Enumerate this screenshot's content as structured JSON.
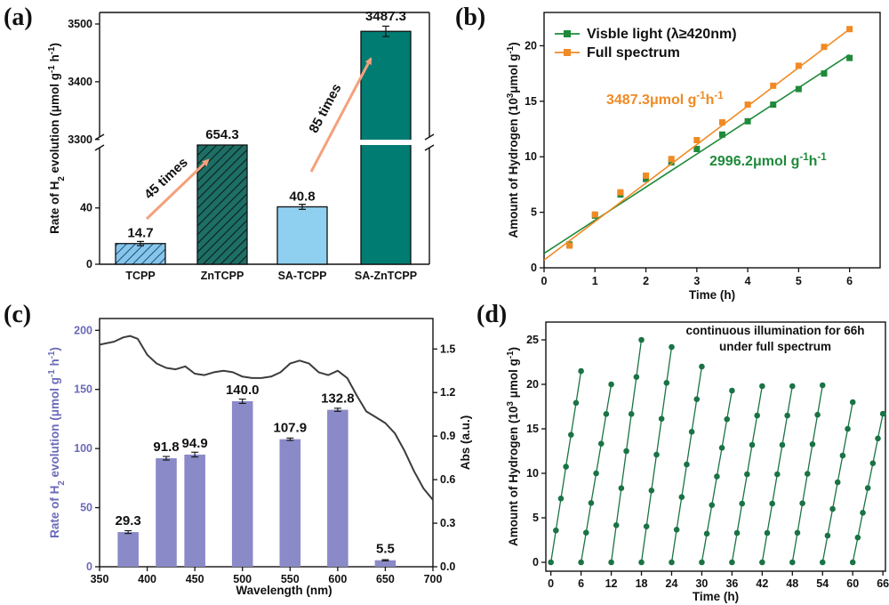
{
  "figure": {
    "panel_letters": [
      "(a)",
      "(b)",
      "(c)",
      "(d)"
    ],
    "colors": {
      "tcpp": "#86c6ea",
      "zntcpp": "#1d6f66",
      "sa_tcpp": "#8fd0f0",
      "sa_zntcpp": "#007c72",
      "arrow": "#f4a17c",
      "green": "#1e8a3a",
      "orange": "#f08a24",
      "purple": "#8a8ac8",
      "purple_text": "#6b6bb8",
      "abs_line": "#3c3c3c",
      "cycle": "#1a7345"
    }
  },
  "chart_data": [
    {
      "panel": "(a)",
      "type": "bar",
      "categories": [
        "TCPP",
        "ZnTCPP",
        "SA-TCPP",
        "SA-ZnTCPP"
      ],
      "values": [
        14.7,
        654.3,
        40.8,
        3487.3
      ],
      "value_labels": [
        "14.7",
        "654.3",
        "40.8",
        "3487.3"
      ],
      "errors": [
        1.5,
        0,
        1.8,
        9
      ],
      "ylabel": "Rate of H2 evolution (μmol g-1 h-1)",
      "ylabel_parts": {
        "main": "Rate of H",
        "sub": "2",
        "rest": " evolution (μmol g",
        "sup1": "-1",
        "mid": " h",
        "sup2": "-1",
        "end": ")"
      },
      "axis_break": true,
      "lower_range": [
        0,
        55
      ],
      "lower_ticks": [
        "0",
        "40"
      ],
      "upper_range": [
        3295,
        3520
      ],
      "upper_ticks": [
        "3300",
        "3400",
        "3500"
      ],
      "annotations": [
        "45 times",
        "85 times"
      ]
    },
    {
      "panel": "(b)",
      "type": "scatter",
      "xlabel": "Time (h)",
      "ylabel": "Amount of Hydrogen (10³μmol g⁻¹)",
      "xlim": [
        0,
        6.6
      ],
      "ylim": [
        0,
        23
      ],
      "xticks": [
        "0",
        "1",
        "2",
        "3",
        "4",
        "5",
        "6"
      ],
      "yticks": [
        "0",
        "5",
        "10",
        "15",
        "20"
      ],
      "series": [
        {
          "name": "Visble light (λ≥420nm)",
          "color": "#1e8a3a",
          "x": [
            0.5,
            1,
            1.5,
            2,
            2.5,
            3,
            3.5,
            4,
            4.5,
            5,
            5.5,
            6
          ],
          "y": [
            2.1,
            4.7,
            6.6,
            8.0,
            9.5,
            10.7,
            12.0,
            13.2,
            14.7,
            16.1,
            17.5,
            18.9
          ],
          "fit": [
            [
              0,
              1.3
            ],
            [
              6,
              19.2
            ]
          ],
          "rate_label": "2996.2μmol g⁻¹h⁻¹"
        },
        {
          "name": "Full spectrum",
          "color": "#f08a24",
          "x": [
            0.5,
            1,
            1.5,
            2,
            2.5,
            3,
            3.5,
            4,
            4.5,
            5,
            5.5,
            6
          ],
          "y": [
            2.0,
            4.8,
            6.8,
            8.3,
            9.8,
            11.5,
            13.1,
            14.7,
            16.4,
            18.2,
            19.9,
            21.5
          ],
          "fit": [
            [
              0,
              0.7
            ],
            [
              6,
              21.5
            ]
          ],
          "rate_label": "3487.3μmol g⁻¹h⁻¹"
        }
      ]
    },
    {
      "panel": "(c)",
      "type": "bar",
      "xlabel": "Wavelength (nm)",
      "ylabel_left": "Rate of H2 evolution (μmol g⁻¹ h⁻¹)",
      "ylabel_right": "Abs (a.u.)",
      "xlim": [
        350,
        700
      ],
      "ylim_left": [
        0,
        210
      ],
      "ylim_right": [
        0,
        1.71
      ],
      "xticks": [
        "350",
        "400",
        "450",
        "500",
        "550",
        "600",
        "650",
        "700"
      ],
      "yticks_left": [
        "0",
        "50",
        "100",
        "150",
        "200"
      ],
      "yticks_right": [
        "0.0",
        "0.3",
        "0.6",
        "0.9",
        "1.2",
        "1.5"
      ],
      "bars": [
        {
          "x": 380,
          "value": 29.3,
          "label": "29.3",
          "err": 1.2
        },
        {
          "x": 420,
          "value": 91.8,
          "label": "91.8",
          "err": 1.5
        },
        {
          "x": 450,
          "value": 94.9,
          "label": "94.9",
          "err": 2.0
        },
        {
          "x": 500,
          "value": 140.0,
          "label": "140.0",
          "err": 1.8
        },
        {
          "x": 550,
          "value": 107.9,
          "label": "107.9",
          "err": 1.0
        },
        {
          "x": 600,
          "value": 132.8,
          "label": "132.8",
          "err": 1.3
        },
        {
          "x": 650,
          "value": 5.5,
          "label": "5.5",
          "err": 0.5
        }
      ],
      "bar_width_nm": 22,
      "absorbance": {
        "x": [
          350,
          365,
          375,
          382,
          390,
          400,
          410,
          420,
          430,
          440,
          450,
          460,
          470,
          480,
          490,
          500,
          510,
          520,
          530,
          540,
          550,
          560,
          570,
          580,
          590,
          600,
          610,
          620,
          630,
          640,
          650,
          660,
          670,
          680,
          690,
          700
        ],
        "y": [
          1.53,
          1.55,
          1.58,
          1.59,
          1.57,
          1.46,
          1.4,
          1.37,
          1.36,
          1.38,
          1.33,
          1.32,
          1.34,
          1.35,
          1.34,
          1.31,
          1.3,
          1.3,
          1.31,
          1.34,
          1.4,
          1.42,
          1.4,
          1.34,
          1.32,
          1.35,
          1.3,
          1.18,
          1.07,
          1.03,
          0.99,
          0.92,
          0.8,
          0.66,
          0.54,
          0.46
        ]
      }
    },
    {
      "panel": "(d)",
      "type": "line",
      "xlabel": "Time (h)",
      "ylabel": "Amount of Hydrogen (10³ μmol g⁻¹)",
      "xlim": [
        -1,
        66.5
      ],
      "ylim": [
        -1,
        27
      ],
      "xticks": [
        "0",
        "6",
        "12",
        "18",
        "24",
        "30",
        "36",
        "42",
        "48",
        "54",
        "60",
        "66"
      ],
      "yticks": [
        "0",
        "5",
        "10",
        "15",
        "20",
        "25"
      ],
      "cycle_length_h": 6,
      "cycle_max": [
        21.5,
        20.0,
        25.0,
        24.2,
        22.0,
        19.3,
        19.8,
        19.8,
        19.9,
        18.0,
        16.7
      ],
      "annotation": [
        "continuous illumination for 66h",
        "under full spectrum"
      ]
    }
  ]
}
